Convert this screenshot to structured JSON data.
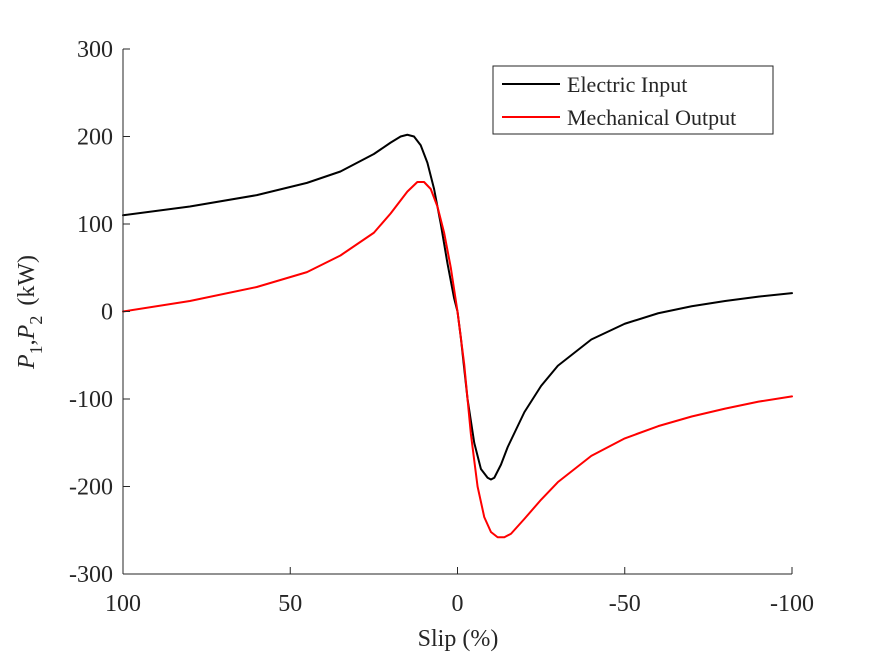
{
  "chart_data": {
    "type": "line",
    "title": "",
    "xlabel": "Slip  (%)",
    "ylabel": {
      "prefix": "P",
      "sub1": "1",
      "sep": ",",
      "prefix2": "P",
      "sub2": "2",
      "unit": "(kW)"
    },
    "xlim": [
      100,
      -100
    ],
    "ylim": [
      -300,
      300
    ],
    "x_reversed": true,
    "grid": false,
    "legend_position": "top-right",
    "x_ticks": [
      100,
      50,
      0,
      -50,
      -100
    ],
    "x_tick_labels": [
      "100",
      "50",
      "0",
      "-50",
      "-100"
    ],
    "y_ticks": [
      -300,
      -200,
      -100,
      0,
      100,
      200,
      300
    ],
    "y_tick_labels": [
      "-300",
      "-200",
      "-100",
      "0",
      "100",
      "200",
      "300"
    ],
    "series": [
      {
        "name": "Electric Input",
        "color": "#000000",
        "x": [
          100,
          80,
          60,
          45,
          35,
          25,
          20,
          17,
          15,
          13,
          11,
          9,
          7,
          5,
          3,
          1,
          0,
          -1,
          -3,
          -5,
          -7,
          -9,
          -10,
          -11,
          -13,
          -15,
          -20,
          -25,
          -30,
          -40,
          -50,
          -60,
          -70,
          -80,
          -90,
          -100
        ],
        "y": [
          110,
          120,
          133,
          147,
          160,
          180,
          193,
          200,
          202,
          200,
          190,
          170,
          140,
          100,
          55,
          15,
          0,
          -30,
          -100,
          -150,
          -180,
          -190,
          -192,
          -190,
          -175,
          -155,
          -115,
          -85,
          -62,
          -32,
          -14,
          -2,
          6,
          12,
          17,
          21
        ]
      },
      {
        "name": "Mechanical Output",
        "color": "#ff0000",
        "x": [
          100,
          80,
          60,
          45,
          35,
          25,
          20,
          15,
          12,
          10,
          8,
          6,
          4,
          2,
          0,
          -2,
          -4,
          -6,
          -8,
          -10,
          -12,
          -14,
          -16,
          -20,
          -25,
          -30,
          -40,
          -50,
          -60,
          -70,
          -80,
          -90,
          -100
        ],
        "y": [
          0,
          12,
          28,
          45,
          64,
          90,
          112,
          137,
          148,
          148,
          140,
          120,
          90,
          50,
          0,
          -60,
          -140,
          -200,
          -235,
          -252,
          -258,
          -258,
          -254,
          -237,
          -215,
          -195,
          -165,
          -145,
          -131,
          -120,
          -111,
          -103,
          -97
        ]
      }
    ]
  }
}
